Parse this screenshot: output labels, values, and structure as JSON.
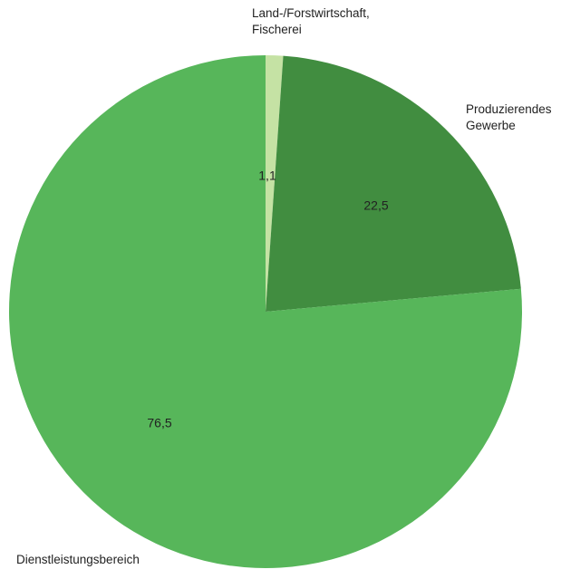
{
  "chart_data": {
    "type": "pie",
    "categories": [
      "Land-/Forstwirtschaft, Fischerei",
      "Produzierendes Gewerbe",
      "Dienstleistungsbereich"
    ],
    "values": [
      1.1,
      22.5,
      76.5
    ],
    "value_labels": [
      "1,1",
      "22,5",
      "76,5"
    ],
    "colors": [
      "#c5e2a4",
      "#418d40",
      "#57b65a"
    ]
  }
}
